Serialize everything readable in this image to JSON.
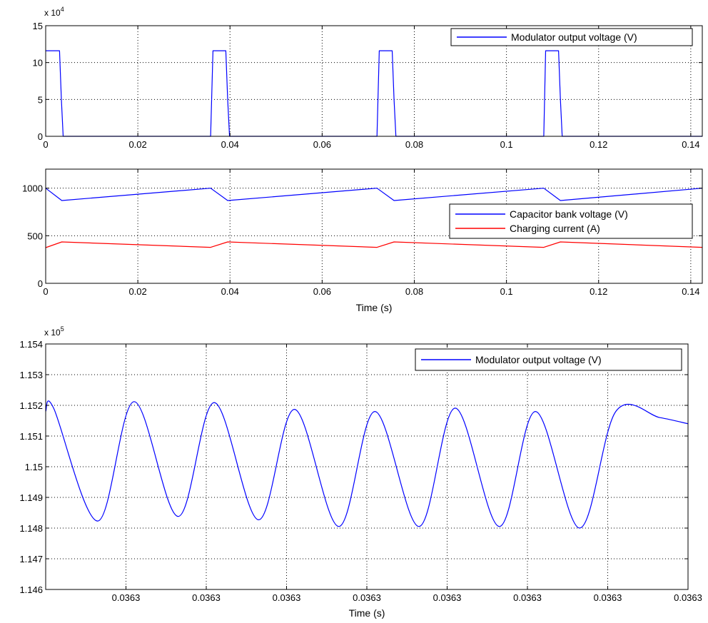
{
  "colors": {
    "background": "#ffffff",
    "axis": "#000000",
    "grid": "#000000",
    "series_blue": "#0000ff",
    "series_red": "#ff0000"
  },
  "chart_data": [
    {
      "type": "line",
      "title": "",
      "xlabel": "",
      "ylabel": "",
      "xlim": [
        0,
        0.1425
      ],
      "ylim": [
        0,
        15
      ],
      "y_exponent_label": "x 10",
      "y_exponent_power": "4",
      "xticks": [
        0,
        0.02,
        0.04,
        0.06,
        0.08,
        0.1,
        0.12,
        0.14
      ],
      "xtick_labels": [
        "0",
        "0.02",
        "0.04",
        "0.06",
        "0.08",
        "0.1",
        "0.12",
        "0.14"
      ],
      "yticks": [
        0,
        5,
        10,
        15
      ],
      "ytick_labels": [
        "0",
        "5",
        "10",
        "15"
      ],
      "grid": true,
      "legend_position": "top-right",
      "series": [
        {
          "name": "Modulator output voltage (V)",
          "color": "#0000ff",
          "x": [
            0,
            0.0003,
            0.0008,
            0.003,
            0.0034,
            0.0038,
            0.0358,
            0.0363,
            0.0367,
            0.0391,
            0.0395,
            0.0399,
            0.0719,
            0.0724,
            0.0728,
            0.0752,
            0.0756,
            0.076,
            0.1081,
            0.1085,
            0.1089,
            0.1113,
            0.1117,
            0.1121,
            0.1425
          ],
          "y": [
            11.6,
            11.6,
            11.6,
            11.6,
            5,
            0,
            0,
            11.6,
            11.6,
            11.6,
            5,
            0,
            0,
            11.6,
            11.6,
            11.6,
            5,
            0,
            0,
            11.6,
            11.6,
            11.6,
            5,
            0,
            0
          ]
        }
      ]
    },
    {
      "type": "line",
      "title": "",
      "xlabel": "Time (s)",
      "ylabel": "",
      "xlim": [
        0,
        0.1425
      ],
      "ylim": [
        0,
        1200
      ],
      "xticks": [
        0,
        0.02,
        0.04,
        0.06,
        0.08,
        0.1,
        0.12,
        0.14
      ],
      "xtick_labels": [
        "0",
        "0.02",
        "0.04",
        "0.06",
        "0.08",
        "0.1",
        "0.12",
        "0.14"
      ],
      "yticks": [
        0,
        500,
        1000
      ],
      "ytick_labels": [
        "0",
        "500",
        "1000"
      ],
      "grid": true,
      "legend_position": "right",
      "series": [
        {
          "name": "Capacitor bank voltage (V)",
          "color": "#0000ff",
          "x": [
            0,
            0.0035,
            0.0358,
            0.0395,
            0.0719,
            0.0756,
            0.1081,
            0.1117,
            0.1425
          ],
          "y": [
            1000,
            870,
            1000,
            870,
            1000,
            870,
            1000,
            870,
            1000
          ]
        },
        {
          "name": "Charging current (A)",
          "color": "#ff0000",
          "x": [
            0,
            0.0035,
            0.0358,
            0.0395,
            0.0719,
            0.0756,
            0.1081,
            0.1117,
            0.1425
          ],
          "y": [
            375,
            435,
            378,
            435,
            378,
            435,
            378,
            435,
            378
          ]
        }
      ]
    },
    {
      "type": "line",
      "title": "",
      "xlabel": "Time (s)",
      "ylabel": "",
      "xlim": [
        0,
        8
      ],
      "ylim": [
        1.146,
        1.154
      ],
      "y_exponent_label": "x 10",
      "y_exponent_power": "5",
      "xticks": [
        1,
        2,
        3,
        4,
        5,
        6,
        7,
        8
      ],
      "xtick_labels": [
        "0.0363",
        "0.0363",
        "0.0363",
        "0.0363",
        "0.0363",
        "0.0363",
        "0.0363",
        "0.0363"
      ],
      "yticks": [
        1.146,
        1.147,
        1.148,
        1.149,
        1.15,
        1.151,
        1.152,
        1.153,
        1.154
      ],
      "ytick_labels": [
        "1.146",
        "1.147",
        "1.148",
        "1.149",
        "1.15",
        "1.151",
        "1.152",
        "1.153",
        "1.154"
      ],
      "grid": true,
      "legend_position": "top-right",
      "series": [
        {
          "name": "Modulator output voltage (V)",
          "color": "#0000ff",
          "x": [
            0,
            0.1,
            0.65,
            1.1,
            1.65,
            2.1,
            2.65,
            3.1,
            3.65,
            4.1,
            4.65,
            5.1,
            5.65,
            6.1,
            6.65,
            7.1,
            7.65,
            8.0
          ],
          "y": [
            1.1518,
            1.1519,
            1.14823,
            1.15212,
            1.14838,
            1.15209,
            1.14827,
            1.15187,
            1.14805,
            1.1518,
            1.14805,
            1.15191,
            1.14805,
            1.1518,
            1.148,
            1.1518,
            1.1516,
            1.1514
          ]
        }
      ]
    }
  ]
}
